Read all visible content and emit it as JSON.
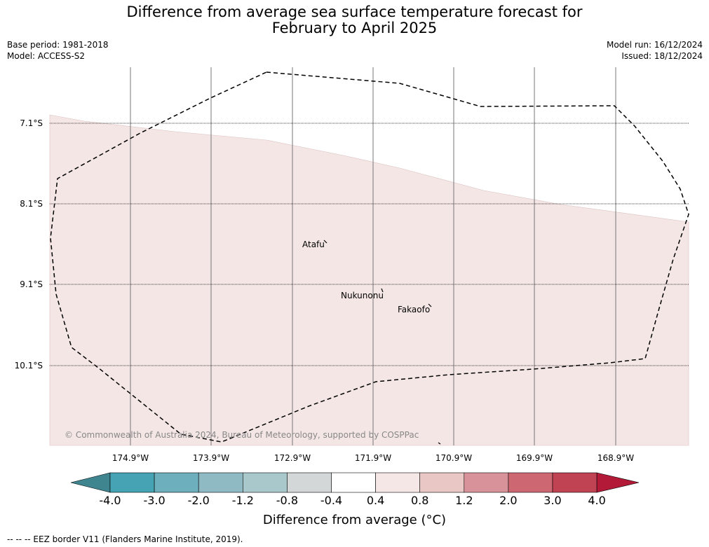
{
  "title": {
    "line1": "Difference from average sea surface temperature forecast for",
    "line2": "February to April 2025"
  },
  "meta": {
    "base_period": "Base period: 1981-2018",
    "model": "Model: ACCESS-S2",
    "model_run": "Model run: 16/12/2024",
    "issued": "Issued: 18/12/2024"
  },
  "map": {
    "latitude_labels": [
      "7.1°S",
      "8.1°S",
      "9.1°S",
      "10.1°S"
    ],
    "longitude_labels": [
      "174.9°W",
      "173.9°W",
      "172.9°W",
      "171.9°W",
      "170.9°W",
      "169.9°W",
      "168.9°W"
    ],
    "islands": [
      "Atafu",
      "Nukunonu",
      "Fakaofo"
    ],
    "fill_color": "#f4e6e5",
    "credit": "© Commonwealth of Australia 2024, Bureau of Meteorology, supported by COSPPac"
  },
  "colorbar": {
    "ticks": [
      "-4.0",
      "-3.0",
      "-2.0",
      "-1.2",
      "-0.8",
      "-0.4",
      "0.4",
      "0.8",
      "1.2",
      "2.0",
      "3.0",
      "4.0"
    ],
    "colors": [
      "#45a3b3",
      "#6dafbd",
      "#8fbac4",
      "#a9c8cc",
      "#d3d7d7",
      "#ffffff",
      "#f5e7e6",
      "#e8c7c4",
      "#d8939a",
      "#cd6772",
      "#bf4352"
    ],
    "under_color": "#3f8590",
    "over_color": "#b21a38",
    "label": "Difference from average (°C)"
  },
  "legend": {
    "text": "-- -- -- EEZ border V11 (Flanders Marine Institute, 2019)."
  }
}
